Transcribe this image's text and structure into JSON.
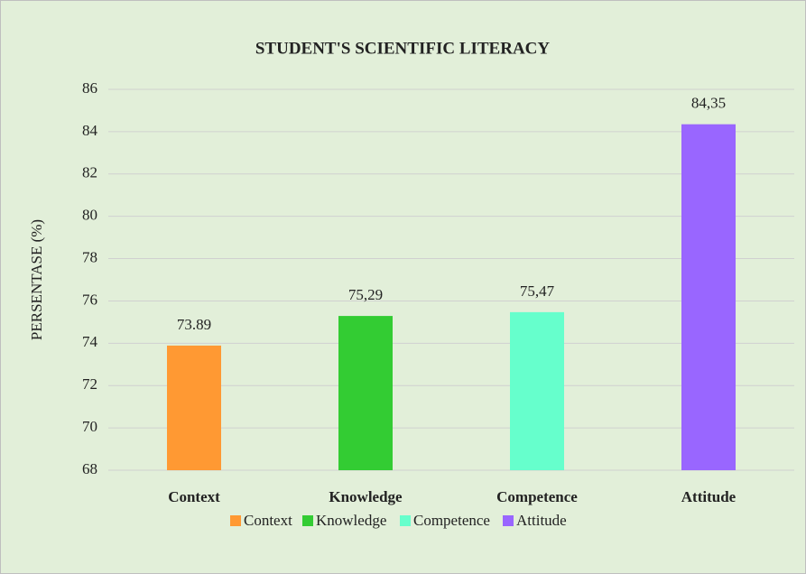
{
  "chart_data": {
    "type": "bar",
    "title": "STUDENT'S SCIENTIFIC LITERACY",
    "y_label": "PERSENTASE (%)",
    "categories": [
      "Context",
      "Knowledge",
      "Competence",
      "Attitude"
    ],
    "values": [
      73.89,
      75.29,
      75.47,
      84.35
    ],
    "value_labels": [
      "73.89",
      "75,29",
      "75,47",
      "84,35"
    ],
    "colors": [
      "#ff9933",
      "#33cc33",
      "#66ffcc",
      "#9966ff"
    ],
    "ylim": [
      68,
      86
    ],
    "yticks": [
      68,
      70,
      72,
      74,
      76,
      78,
      80,
      82,
      84,
      86
    ],
    "grid": true,
    "legend": "bottom"
  }
}
